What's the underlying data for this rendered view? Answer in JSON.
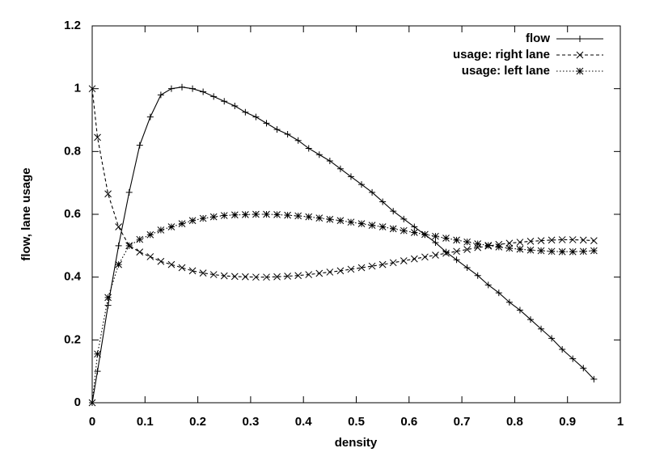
{
  "chart_data": {
    "type": "line",
    "xlabel": "density",
    "ylabel": "flow, lane usage",
    "x": [
      0,
      0.01,
      0.03,
      0.05,
      0.07,
      0.09,
      0.11,
      0.13,
      0.15,
      0.17,
      0.19,
      0.21,
      0.23,
      0.25,
      0.27,
      0.29,
      0.31,
      0.33,
      0.35,
      0.37,
      0.39,
      0.41,
      0.43,
      0.45,
      0.47,
      0.49,
      0.51,
      0.53,
      0.55,
      0.57,
      0.59,
      0.61,
      0.63,
      0.65,
      0.67,
      0.69,
      0.71,
      0.73,
      0.75,
      0.77,
      0.79,
      0.81,
      0.83,
      0.85,
      0.87,
      0.89,
      0.91,
      0.93,
      0.95
    ],
    "series": [
      {
        "name": "flow",
        "color": "#000000",
        "dash": "solid",
        "marker": "plus",
        "values": [
          0,
          0.1,
          0.31,
          0.5,
          0.67,
          0.82,
          0.91,
          0.98,
          1.0,
          1.005,
          1.0,
          0.99,
          0.975,
          0.96,
          0.945,
          0.925,
          0.91,
          0.89,
          0.87,
          0.855,
          0.835,
          0.81,
          0.79,
          0.77,
          0.745,
          0.72,
          0.695,
          0.67,
          0.64,
          0.61,
          0.585,
          0.56,
          0.535,
          0.51,
          0.48,
          0.455,
          0.43,
          0.405,
          0.375,
          0.35,
          0.32,
          0.295,
          0.265,
          0.235,
          0.205,
          0.17,
          0.14,
          0.11,
          0.075
        ]
      },
      {
        "name": "usage: right lane",
        "color": "#000000",
        "dash": "dashed",
        "marker": "cross",
        "values": [
          1.0,
          0.845,
          0.665,
          0.56,
          0.5,
          0.48,
          0.465,
          0.45,
          0.44,
          0.43,
          0.42,
          0.413,
          0.408,
          0.404,
          0.402,
          0.401,
          0.4,
          0.4,
          0.401,
          0.403,
          0.405,
          0.408,
          0.412,
          0.416,
          0.42,
          0.425,
          0.43,
          0.435,
          0.44,
          0.446,
          0.452,
          0.458,
          0.464,
          0.47,
          0.476,
          0.482,
          0.488,
          0.494,
          0.499,
          0.504,
          0.508,
          0.511,
          0.514,
          0.516,
          0.518,
          0.519,
          0.519,
          0.518,
          0.516
        ]
      },
      {
        "name": "usage: left lane",
        "color": "#000000",
        "dash": "dotted",
        "marker": "star",
        "values": [
          0,
          0.155,
          0.335,
          0.44,
          0.5,
          0.52,
          0.535,
          0.55,
          0.56,
          0.57,
          0.58,
          0.587,
          0.592,
          0.596,
          0.598,
          0.599,
          0.6,
          0.6,
          0.599,
          0.597,
          0.595,
          0.592,
          0.588,
          0.584,
          0.58,
          0.575,
          0.57,
          0.565,
          0.56,
          0.554,
          0.548,
          0.542,
          0.536,
          0.53,
          0.524,
          0.518,
          0.512,
          0.506,
          0.501,
          0.496,
          0.492,
          0.489,
          0.486,
          0.484,
          0.482,
          0.481,
          0.481,
          0.482,
          0.484
        ]
      }
    ],
    "xlim": [
      0,
      1
    ],
    "ylim": [
      0,
      1.2
    ],
    "xticks": [
      0,
      0.1,
      0.2,
      0.3,
      0.4,
      0.5,
      0.6,
      0.7,
      0.8,
      0.9,
      1
    ],
    "yticks": [
      0,
      0.2,
      0.4,
      0.6,
      0.8,
      1,
      1.2
    ],
    "grid": false,
    "legend": "top-right"
  }
}
